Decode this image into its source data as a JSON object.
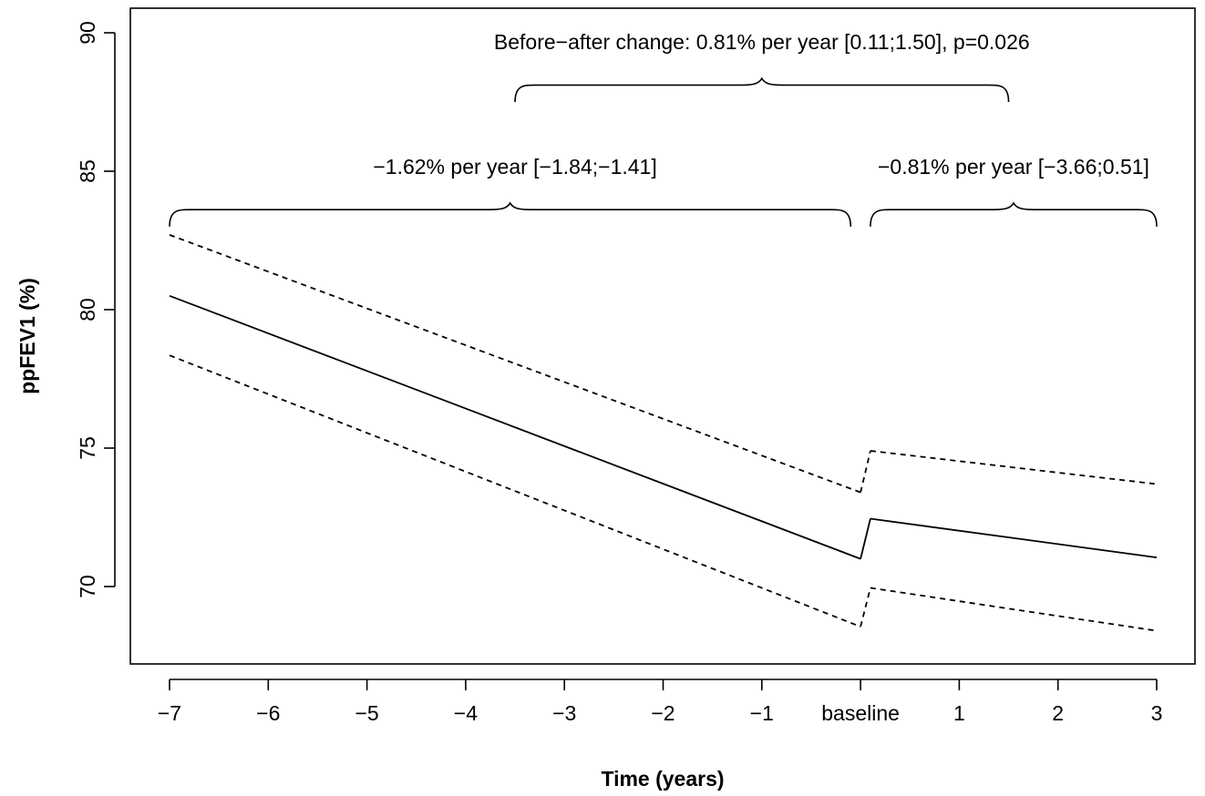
{
  "chart_data": {
    "type": "line",
    "xlabel": "Time (years)",
    "ylabel": "ppFEV1 (%)",
    "xlim": [
      -7.4,
      3.4
    ],
    "ylim": [
      67,
      91
    ],
    "x_ticks": [
      -7,
      -6,
      -5,
      -4,
      -3,
      -2,
      -1,
      0,
      1,
      2,
      3
    ],
    "x_tick_labels": [
      "−7",
      "−6",
      "−5",
      "−4",
      "−3",
      "−2",
      "−1",
      "baseline",
      "1",
      "2",
      "3"
    ],
    "y_ticks": [
      70,
      75,
      80,
      85,
      90
    ],
    "y_tick_labels": [
      "70",
      "75",
      "80",
      "85",
      "90"
    ],
    "grid": false,
    "series": [
      {
        "style": "solid",
        "segments": [
          [
            [
              -7,
              80.5
            ],
            [
              0,
              71.0
            ]
          ],
          [
            [
              0.1,
              72.45
            ],
            [
              3,
              71.05
            ]
          ]
        ]
      },
      {
        "style": "dashed",
        "segments": [
          [
            [
              -7,
              82.7
            ],
            [
              0,
              73.4
            ]
          ],
          [
            [
              0.1,
              74.9
            ],
            [
              3,
              73.7
            ]
          ]
        ]
      },
      {
        "style": "dashed",
        "segments": [
          [
            [
              -7,
              78.35
            ],
            [
              0,
              68.55
            ]
          ],
          [
            [
              0.1,
              69.95
            ],
            [
              3,
              68.4
            ]
          ]
        ]
      }
    ],
    "annotations": [
      {
        "text": "Before−after change: 0.81% per year [0.11;1.50], p=0.026",
        "x": -1,
        "y": 89.4
      },
      {
        "text": "−1.62% per year [−1.84;−1.41]",
        "x": -3.5,
        "y": 84.9
      },
      {
        "text": "−0.81% per year [−3.66;0.51]",
        "x": 1.55,
        "y": 84.9
      }
    ],
    "braces": [
      {
        "x1": -3.5,
        "x2": 1.5,
        "y_base": 87.5,
        "y_top": 88.35
      },
      {
        "x1": -7,
        "x2": -0.1,
        "y_base": 83.0,
        "y_top": 83.85
      },
      {
        "x1": 0.1,
        "x2": 3,
        "y_base": 83.0,
        "y_top": 83.85
      }
    ]
  }
}
